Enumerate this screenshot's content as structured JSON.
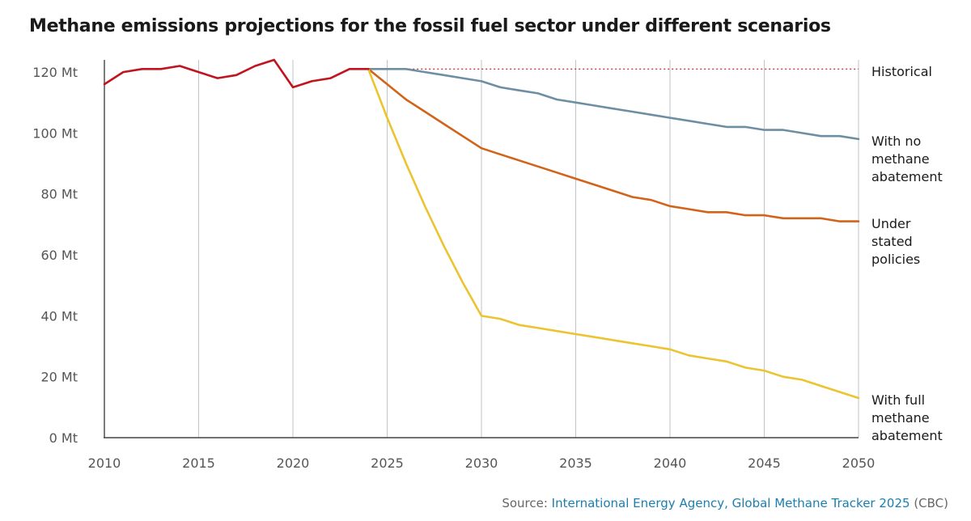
{
  "page": {
    "source_prefix": "Source: ",
    "source_link": "International Energy Agency, Global Methane Tracker 2025",
    "source_suffix": " (CBC)"
  },
  "chart_data": {
    "type": "line",
    "title": "Methane emissions projections for the fossil fuel sector under different scenarios",
    "xlabel": "",
    "ylabel": "",
    "xlim": [
      2010,
      2050
    ],
    "ylim": [
      0,
      124
    ],
    "x_ticks": [
      2010,
      2015,
      2020,
      2025,
      2030,
      2035,
      2040,
      2045,
      2050
    ],
    "y_ticks": [
      0,
      20,
      40,
      60,
      80,
      100,
      120
    ],
    "y_tick_labels": [
      "0 Mt",
      "20 Mt",
      "40 Mt",
      "60 Mt",
      "80 Mt",
      "100 Mt",
      "120 Mt"
    ],
    "grid": "vertical",
    "series": [
      {
        "name": "Historical",
        "label_lines": [
          "Historical"
        ],
        "color": "#c0141e",
        "x": [
          2010,
          2011,
          2012,
          2013,
          2014,
          2015,
          2016,
          2017,
          2018,
          2019,
          2020,
          2021,
          2022,
          2023,
          2024
        ],
        "y": [
          116,
          120,
          121,
          121,
          122,
          120,
          118,
          119,
          122,
          124,
          115,
          117,
          118,
          121,
          121
        ]
      },
      {
        "name": "With no methane abatement",
        "label_lines": [
          "With no",
          "methane",
          "abatement"
        ],
        "color": "#6e8fa3",
        "x": [
          2024,
          2025,
          2026,
          2027,
          2028,
          2029,
          2030,
          2031,
          2032,
          2033,
          2034,
          2035,
          2036,
          2037,
          2038,
          2039,
          2040,
          2041,
          2042,
          2043,
          2044,
          2045,
          2046,
          2047,
          2048,
          2049,
          2050
        ],
        "y": [
          121,
          121,
          121,
          120,
          119,
          118,
          117,
          115,
          114,
          113,
          111,
          110,
          109,
          108,
          107,
          106,
          105,
          104,
          103,
          102,
          102,
          101,
          101,
          100,
          99,
          99,
          98
        ]
      },
      {
        "name": "Under stated policies",
        "label_lines": [
          "Under",
          "stated",
          "policies"
        ],
        "color": "#d2641a",
        "x": [
          2024,
          2025,
          2026,
          2027,
          2028,
          2029,
          2030,
          2031,
          2032,
          2033,
          2034,
          2035,
          2036,
          2037,
          2038,
          2039,
          2040,
          2041,
          2042,
          2043,
          2044,
          2045,
          2046,
          2047,
          2048,
          2049,
          2050
        ],
        "y": [
          121,
          116,
          111,
          107,
          103,
          99,
          95,
          93,
          91,
          89,
          87,
          85,
          83,
          81,
          79,
          78,
          76,
          75,
          74,
          74,
          73,
          73,
          72,
          72,
          72,
          71,
          71
        ]
      },
      {
        "name": "With full methane abatement",
        "label_lines": [
          "With full",
          "methane",
          "abatement"
        ],
        "color": "#ebc430",
        "x": [
          2024,
          2025,
          2026,
          2027,
          2028,
          2029,
          2030,
          2031,
          2032,
          2033,
          2034,
          2035,
          2036,
          2037,
          2038,
          2039,
          2040,
          2041,
          2042,
          2043,
          2044,
          2045,
          2046,
          2047,
          2048,
          2049,
          2050
        ],
        "y": [
          121,
          105,
          90,
          76,
          63,
          51,
          40,
          39,
          37,
          36,
          35,
          34,
          33,
          32,
          31,
          30,
          29,
          27,
          26,
          25,
          23,
          22,
          20,
          19,
          17,
          15,
          13
        ]
      }
    ],
    "reference_line": {
      "y": 121,
      "x_from": 2024,
      "x_to": 2050,
      "style": "dotted",
      "color": "#c0141e"
    }
  }
}
